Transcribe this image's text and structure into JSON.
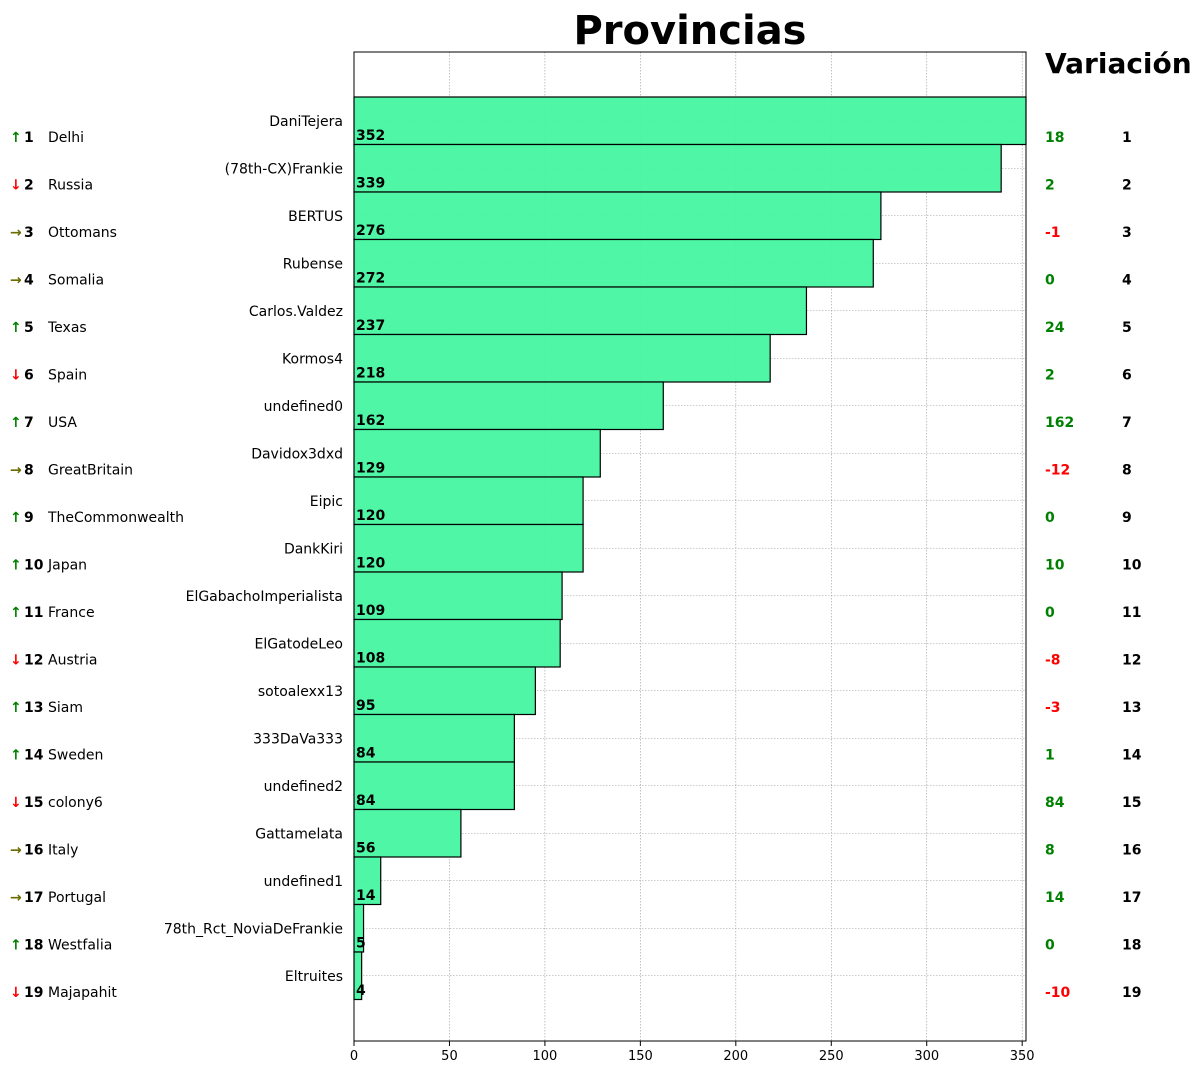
{
  "chart_data": {
    "type": "bar",
    "orientation": "horizontal",
    "title": "Provincias",
    "right_header": "Variación",
    "xlim": [
      0,
      352
    ],
    "xticks": [
      0,
      50,
      100,
      150,
      200,
      250,
      300,
      350
    ],
    "grid": true,
    "bar_color": "#44f5a0",
    "up_color": "#008000",
    "down_color": "#ff0000",
    "same_color": "#6b6b00",
    "categories": [
      "DaniTejera",
      "(78th-CX)Frankie",
      "BERTUS",
      "Rubense",
      "Carlos.Valdez",
      "Kormos4",
      "undefined0",
      "Davidox3dxd",
      "Eipic",
      "DankKiri",
      "ElGabachoImperialista",
      "ElGatodeLeo",
      "sotoalexx13",
      "333DaVa333",
      "undefined2",
      "Gattamelata",
      "undefined1",
      "78th_Rct_NoviaDeFrankie",
      "Eltruites"
    ],
    "values": [
      352,
      339,
      276,
      272,
      237,
      218,
      162,
      129,
      120,
      120,
      109,
      108,
      95,
      84,
      84,
      56,
      14,
      5,
      4
    ],
    "ranks": [
      "1",
      "2",
      "3",
      "4",
      "5",
      "6",
      "7",
      "8",
      "9",
      "10",
      "11",
      "12",
      "13",
      "14",
      "15",
      "16",
      "17",
      "18",
      "19"
    ],
    "countries": [
      "Delhi",
      "Russia",
      "Ottomans",
      "Somalia",
      "Texas",
      "Spain",
      "USA",
      "GreatBritain",
      "TheCommonwealth",
      "Japan",
      "France",
      "Austria",
      "Siam",
      "Sweden",
      "colony6",
      "Italy",
      "Portugal",
      "Westfalia",
      "Majapahit"
    ],
    "trend": [
      "up",
      "down",
      "same",
      "same",
      "up",
      "down",
      "up",
      "same",
      "up",
      "up",
      "up",
      "down",
      "up",
      "up",
      "down",
      "same",
      "same",
      "up",
      "down"
    ],
    "variation": [
      "18",
      "2",
      "-1",
      "0",
      "24",
      "2",
      "162",
      "-12",
      "0",
      "10",
      "0",
      "-8",
      "-3",
      "1",
      "84",
      "8",
      "14",
      "0",
      "-10"
    ]
  }
}
